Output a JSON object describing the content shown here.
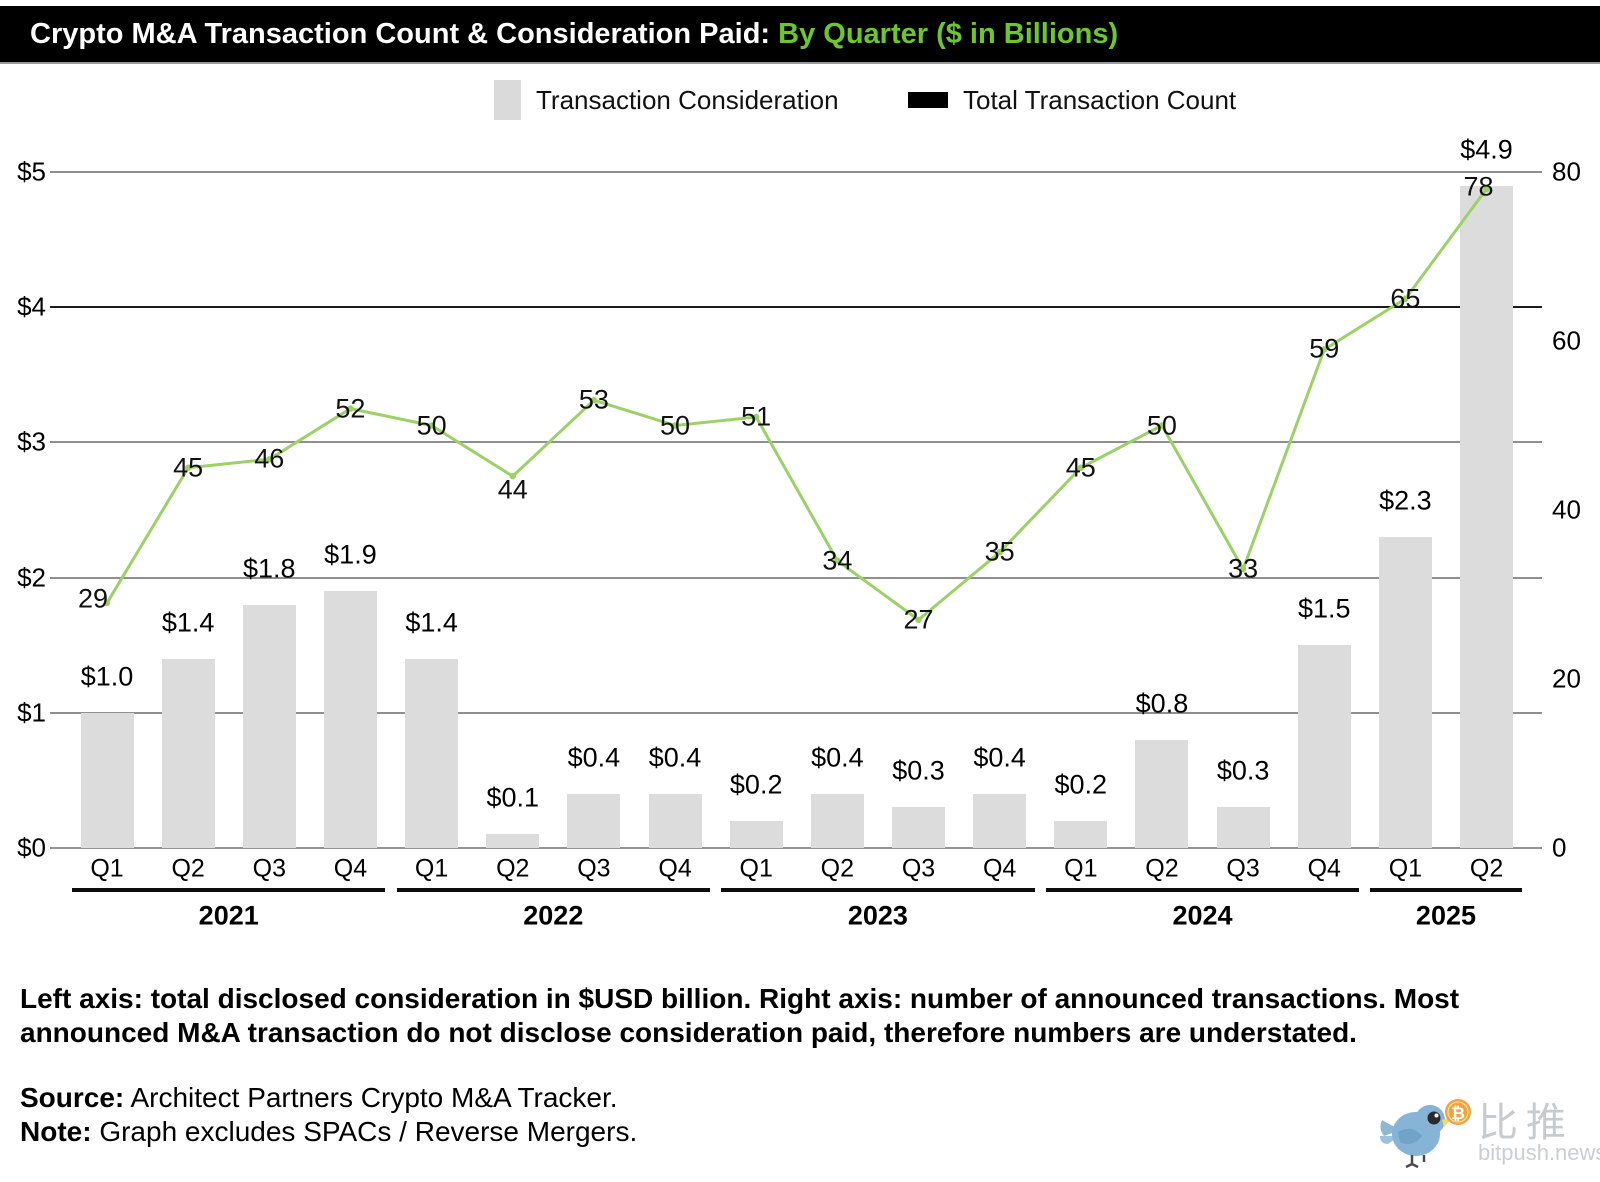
{
  "title": {
    "main": "Crypto M&A Transaction Count & Consideration Paid:",
    "highlight": "By Quarter ($ in Billions)",
    "highlight_color": "#6cc72f"
  },
  "legend": {
    "bars_label": "Transaction Consideration",
    "line_label": "Total Transaction Count",
    "bars_color": "#dadada",
    "line_swatch_color": "#000000"
  },
  "chart_data": {
    "type": "bar+line",
    "categories": [
      "2021 Q1",
      "2021 Q2",
      "2021 Q3",
      "2021 Q4",
      "2022 Q1",
      "2022 Q2",
      "2022 Q3",
      "2022 Q4",
      "2023 Q1",
      "2023 Q2",
      "2023 Q3",
      "2023 Q4",
      "2024 Q1",
      "2024 Q2",
      "2024 Q3",
      "2024 Q4",
      "2025 Q1",
      "2025 Q2"
    ],
    "years": [
      {
        "label": "2021",
        "count": 4
      },
      {
        "label": "2022",
        "count": 4
      },
      {
        "label": "2023",
        "count": 4
      },
      {
        "label": "2024",
        "count": 4
      },
      {
        "label": "2025",
        "count": 2
      }
    ],
    "series": [
      {
        "name": "Transaction Consideration",
        "type": "bar",
        "axis": "left",
        "unit": "$ billions",
        "color": "#dcdcdc",
        "values": [
          1.0,
          1.4,
          1.8,
          1.9,
          1.4,
          0.1,
          0.4,
          0.4,
          0.2,
          0.4,
          0.3,
          0.4,
          0.2,
          0.8,
          0.3,
          1.5,
          2.3,
          4.9
        ],
        "labels": [
          "$1.0",
          "$1.4",
          "$1.8",
          "$1.9",
          "$1.4",
          "$0.1",
          "$0.4",
          "$0.4",
          "$0.2",
          "$0.4",
          "$0.3",
          "$0.4",
          "$0.2",
          "$0.8",
          "$0.3",
          "$1.5",
          "$2.3",
          "$4.9"
        ]
      },
      {
        "name": "Total Transaction Count",
        "type": "line",
        "axis": "right",
        "color": "#9bd167",
        "values": [
          29,
          45,
          46,
          52,
          50,
          44,
          53,
          50,
          51,
          34,
          27,
          35,
          45,
          50,
          33,
          59,
          65,
          78
        ],
        "labels": [
          "29",
          "45",
          "46",
          "52",
          "50",
          "44",
          "53",
          "50",
          "51",
          "34",
          "27",
          "35",
          "45",
          "50",
          "33",
          "59",
          "65",
          "78"
        ]
      }
    ],
    "left_axis": {
      "ticks": [
        "$0",
        "$1",
        "$2",
        "$3",
        "$4",
        "$5"
      ],
      "min": 0,
      "max": 5
    },
    "right_axis": {
      "ticks": [
        "0",
        "20",
        "40",
        "60",
        "80"
      ],
      "min": 0,
      "max": 80
    },
    "grid": true,
    "legend_position": "top"
  },
  "footnote": {
    "line1": "Left axis: total disclosed consideration in $USD billion. Right axis: number of announced transactions. Most",
    "line2": "announced M&A transaction do not disclose consideration paid, therefore numbers are understated."
  },
  "source": {
    "label": "Source:",
    "text": " Architect Partners Crypto M&A Tracker."
  },
  "note": {
    "label": "Note:",
    "text": " Graph excludes SPACs / Reverse Mergers."
  },
  "watermark": {
    "cn": "比推",
    "en": "bitpush.news"
  }
}
